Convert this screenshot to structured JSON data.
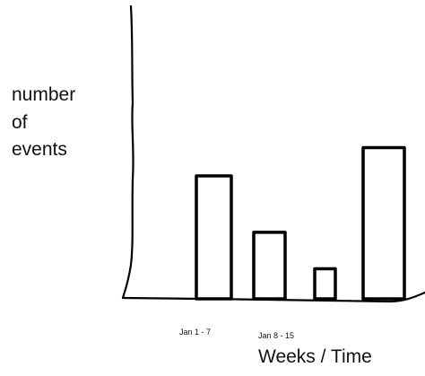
{
  "chart_data": {
    "type": "bar",
    "style": "hand-drawn sketch, black outlines, white fill",
    "title": "",
    "ylabel_lines": [
      "number",
      "of",
      "events"
    ],
    "xlabel": "Weeks / Time",
    "categories": [
      "Jan 1 - 7",
      "Jan 8 - 15",
      "",
      ""
    ],
    "values": [
      13.5,
      7.3,
      3.3,
      16.6
    ],
    "ylim": [
      0,
      20
    ],
    "y_ticks_shown": false,
    "grid": false,
    "legend": "none",
    "colors": {
      "stroke": "#000000",
      "fill": "#ffffff",
      "text": "#111111"
    }
  }
}
